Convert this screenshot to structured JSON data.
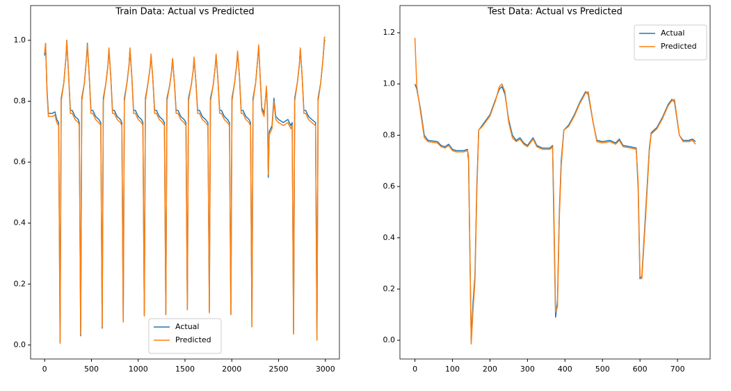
{
  "chart_data": [
    {
      "type": "line",
      "title": "Train Data: Actual vs Predicted",
      "x": [
        0,
        10,
        25,
        40,
        80,
        110,
        130,
        150,
        165,
        177,
        205,
        227,
        237,
        257,
        275,
        295,
        325,
        360,
        370,
        385,
        397,
        425,
        447,
        457,
        477,
        495,
        515,
        545,
        580,
        600,
        615,
        627,
        655,
        677,
        687,
        707,
        725,
        745,
        775,
        810,
        825,
        840,
        852,
        880,
        902,
        912,
        932,
        950,
        970,
        1000,
        1035,
        1050,
        1065,
        1077,
        1105,
        1127,
        1137,
        1157,
        1175,
        1195,
        1225,
        1260,
        1280,
        1295,
        1307,
        1335,
        1357,
        1367,
        1387,
        1405,
        1425,
        1455,
        1490,
        1510,
        1525,
        1537,
        1565,
        1587,
        1597,
        1617,
        1635,
        1655,
        1685,
        1720,
        1745,
        1760,
        1772,
        1800,
        1822,
        1832,
        1852,
        1870,
        1890,
        1920,
        1955,
        1975,
        1990,
        2002,
        2030,
        2052,
        2062,
        2082,
        2100,
        2120,
        2150,
        2185,
        2200,
        2215,
        2227,
        2255,
        2277,
        2287,
        2300,
        2320,
        2345,
        2370,
        2380,
        2390,
        2400,
        2430,
        2450,
        2470,
        2500,
        2550,
        2600,
        2630,
        2645,
        2660,
        2672,
        2700,
        2722,
        2732,
        2752,
        2770,
        2790,
        2820,
        2855,
        2895,
        2910,
        2922,
        2950,
        2975,
        2990,
        3000
      ],
      "series": [
        {
          "name": "Actual",
          "color": "#1f77b4",
          "values": [
            0.95,
            0.99,
            0.84,
            0.76,
            0.76,
            0.765,
            0.74,
            0.73,
            0.01,
            0.81,
            0.86,
            0.94,
            1.0,
            0.88,
            0.77,
            0.77,
            0.75,
            0.74,
            0.73,
            0.03,
            0.81,
            0.86,
            0.94,
            0.99,
            0.88,
            0.77,
            0.77,
            0.75,
            0.74,
            0.73,
            0.055,
            0.81,
            0.86,
            0.92,
            0.97,
            0.88,
            0.77,
            0.77,
            0.75,
            0.74,
            0.73,
            0.08,
            0.81,
            0.86,
            0.92,
            0.97,
            0.88,
            0.77,
            0.77,
            0.75,
            0.74,
            0.73,
            0.1,
            0.81,
            0.86,
            0.91,
            0.95,
            0.87,
            0.77,
            0.77,
            0.75,
            0.74,
            0.73,
            0.1,
            0.81,
            0.85,
            0.9,
            0.94,
            0.86,
            0.77,
            0.77,
            0.75,
            0.74,
            0.73,
            0.12,
            0.81,
            0.85,
            0.9,
            0.94,
            0.86,
            0.77,
            0.77,
            0.75,
            0.74,
            0.73,
            0.11,
            0.81,
            0.85,
            0.91,
            0.95,
            0.87,
            0.77,
            0.77,
            0.75,
            0.74,
            0.73,
            0.1,
            0.81,
            0.86,
            0.92,
            0.96,
            0.88,
            0.77,
            0.77,
            0.75,
            0.74,
            0.73,
            0.06,
            0.81,
            0.86,
            0.94,
            0.98,
            0.9,
            0.78,
            0.76,
            0.84,
            0.78,
            0.55,
            0.7,
            0.72,
            0.81,
            0.75,
            0.74,
            0.73,
            0.74,
            0.72,
            0.73,
            0.04,
            0.81,
            0.86,
            0.92,
            0.97,
            0.88,
            0.77,
            0.77,
            0.75,
            0.74,
            0.73,
            0.02,
            0.81,
            0.86,
            0.94,
            1.0,
            1.0
          ]
        },
        {
          "name": "Predicted",
          "color": "#ff7f0e",
          "values": [
            0.96,
            0.99,
            0.83,
            0.75,
            0.75,
            0.755,
            0.73,
            0.72,
            0.005,
            0.8,
            0.86,
            0.94,
            1.0,
            0.88,
            0.76,
            0.76,
            0.74,
            0.73,
            0.72,
            0.035,
            0.8,
            0.86,
            0.94,
            0.985,
            0.88,
            0.76,
            0.76,
            0.74,
            0.73,
            0.72,
            0.06,
            0.8,
            0.86,
            0.92,
            0.975,
            0.88,
            0.76,
            0.76,
            0.74,
            0.73,
            0.72,
            0.075,
            0.8,
            0.86,
            0.92,
            0.975,
            0.88,
            0.76,
            0.76,
            0.74,
            0.73,
            0.72,
            0.095,
            0.8,
            0.86,
            0.91,
            0.955,
            0.87,
            0.76,
            0.76,
            0.74,
            0.73,
            0.72,
            0.1,
            0.8,
            0.85,
            0.9,
            0.94,
            0.86,
            0.76,
            0.76,
            0.74,
            0.73,
            0.72,
            0.115,
            0.8,
            0.85,
            0.9,
            0.945,
            0.86,
            0.76,
            0.76,
            0.74,
            0.73,
            0.72,
            0.105,
            0.8,
            0.85,
            0.91,
            0.955,
            0.87,
            0.76,
            0.76,
            0.74,
            0.73,
            0.72,
            0.1,
            0.8,
            0.86,
            0.92,
            0.965,
            0.88,
            0.76,
            0.76,
            0.74,
            0.73,
            0.72,
            0.06,
            0.8,
            0.86,
            0.94,
            0.985,
            0.9,
            0.77,
            0.75,
            0.85,
            0.77,
            0.56,
            0.69,
            0.71,
            0.8,
            0.74,
            0.73,
            0.72,
            0.73,
            0.71,
            0.72,
            0.035,
            0.8,
            0.86,
            0.92,
            0.975,
            0.88,
            0.76,
            0.76,
            0.74,
            0.73,
            0.72,
            0.015,
            0.8,
            0.86,
            0.94,
            1.01,
            1.01
          ]
        }
      ],
      "xlim": [
        -150,
        3150
      ],
      "ylim": [
        -0.046,
        1.114
      ],
      "xticks": [
        0,
        500,
        1000,
        1500,
        2000,
        2500,
        3000
      ],
      "yticks": [
        {
          "value": 0,
          "label": "0.0"
        },
        0.2,
        0.4,
        0.6,
        0.8,
        {
          "value": 1,
          "label": "1.0"
        }
      ],
      "legend": "lower center"
    },
    {
      "type": "line",
      "title": "Test Data: Actual vs Predicted",
      "x": [
        0,
        5,
        15,
        25,
        35,
        60,
        70,
        80,
        90,
        100,
        110,
        130,
        140,
        143,
        150,
        155,
        160,
        165,
        170,
        180,
        200,
        215,
        225,
        232,
        240,
        250,
        260,
        270,
        280,
        290,
        300,
        315,
        325,
        340,
        360,
        367,
        370,
        375,
        380,
        385,
        390,
        397,
        410,
        425,
        440,
        455,
        462,
        475,
        485,
        500,
        520,
        535,
        545,
        555,
        575,
        590,
        595,
        600,
        605,
        615,
        625,
        630,
        645,
        660,
        675,
        685,
        692,
        705,
        715,
        730,
        740,
        748
      ],
      "series": [
        {
          "name": "Actual",
          "color": "#1f77b4",
          "values": [
            1.0,
            0.98,
            0.9,
            0.8,
            0.78,
            0.775,
            0.76,
            0.755,
            0.765,
            0.745,
            0.74,
            0.74,
            0.745,
            0.7,
            0.0,
            0.15,
            0.25,
            0.6,
            0.82,
            0.84,
            0.88,
            0.94,
            0.98,
            0.99,
            0.96,
            0.86,
            0.8,
            0.78,
            0.79,
            0.77,
            0.76,
            0.79,
            0.76,
            0.75,
            0.75,
            0.76,
            0.5,
            0.09,
            0.15,
            0.5,
            0.7,
            0.82,
            0.84,
            0.88,
            0.93,
            0.97,
            0.96,
            0.85,
            0.78,
            0.775,
            0.78,
            0.77,
            0.785,
            0.76,
            0.755,
            0.75,
            0.6,
            0.24,
            0.25,
            0.5,
            0.75,
            0.81,
            0.83,
            0.87,
            0.92,
            0.94,
            0.93,
            0.8,
            0.78,
            0.78,
            0.785,
            0.775
          ]
        },
        {
          "name": "Predicted",
          "color": "#ff7f0e",
          "values": [
            1.18,
            0.99,
            0.89,
            0.79,
            0.775,
            0.77,
            0.755,
            0.75,
            0.76,
            0.74,
            0.735,
            0.735,
            0.74,
            0.72,
            -0.015,
            0.12,
            0.23,
            0.58,
            0.82,
            0.835,
            0.875,
            0.935,
            0.99,
            1.0,
            0.97,
            0.85,
            0.79,
            0.775,
            0.785,
            0.765,
            0.755,
            0.785,
            0.755,
            0.745,
            0.745,
            0.755,
            0.55,
            0.11,
            0.13,
            0.48,
            0.68,
            0.82,
            0.835,
            0.875,
            0.925,
            0.965,
            0.97,
            0.85,
            0.775,
            0.77,
            0.775,
            0.765,
            0.78,
            0.755,
            0.75,
            0.745,
            0.62,
            0.25,
            0.24,
            0.48,
            0.74,
            0.805,
            0.825,
            0.865,
            0.915,
            0.935,
            0.94,
            0.8,
            0.775,
            0.775,
            0.78,
            0.765
          ]
        }
      ],
      "xlim": [
        -40,
        787
      ],
      "ylim": [
        -0.073,
        1.306
      ],
      "xticks": [
        0,
        100,
        200,
        300,
        400,
        500,
        600,
        700
      ],
      "yticks": [
        {
          "value": 0,
          "label": "0.0"
        },
        0.2,
        0.4,
        0.6,
        0.8,
        {
          "value": 1,
          "label": "1.0"
        },
        1.2
      ],
      "legend": "upper right"
    }
  ]
}
